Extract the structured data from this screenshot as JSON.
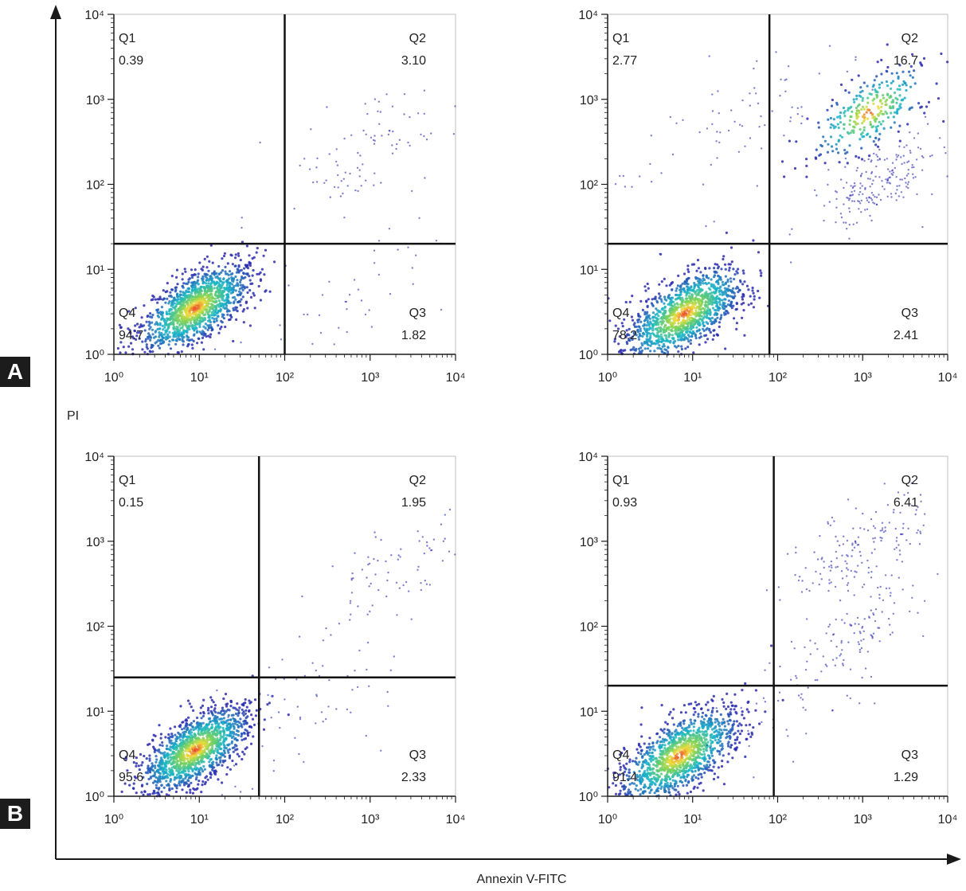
{
  "figure": {
    "y_label": "PI",
    "x_label": "Annexin V-FITC",
    "panel_labels": [
      "A",
      "B"
    ]
  },
  "colors": {
    "axis": "#1a1a1a",
    "density_low": "#2b2bb0",
    "density_mid": "#18b6c8",
    "density_high": "#e8352b"
  },
  "chart_data": [
    {
      "type": "scatter",
      "panel": "A",
      "position": "top-left",
      "title": "",
      "xlabel": "",
      "ylabel": "",
      "scale": "log",
      "xlim": [
        1,
        10000
      ],
      "ylim": [
        1,
        10000
      ],
      "x_ticks": [
        "10^0",
        "10^1",
        "10^2",
        "10^3",
        "10^4"
      ],
      "y_ticks": [
        "10^0",
        "10^1",
        "10^2",
        "10^3",
        "10^4"
      ],
      "gates": {
        "x": 100,
        "y": 20
      },
      "quadrants": {
        "Q1": "0.39",
        "Q2": "3.10",
        "Q3": "1.82",
        "Q4": "94.7"
      },
      "clusters": [
        {
          "x": 9,
          "y": 3.5,
          "spread": 0.28,
          "points": 1400,
          "dense": true
        },
        {
          "x": 1000,
          "y": 300,
          "spread": 0.45,
          "points": 90,
          "dense": false
        },
        {
          "x": 300,
          "y": 3,
          "spread": 0.5,
          "points": 45,
          "dense": false
        }
      ]
    },
    {
      "type": "scatter",
      "panel": "A",
      "position": "top-right",
      "title": "",
      "xlabel": "",
      "ylabel": "",
      "scale": "log",
      "xlim": [
        1,
        10000
      ],
      "ylim": [
        1,
        10000
      ],
      "x_ticks": [
        "10^0",
        "10^1",
        "10^2",
        "10^3",
        "10^4"
      ],
      "y_ticks": [
        "10^0",
        "10^1",
        "10^2",
        "10^3",
        "10^4"
      ],
      "gates": {
        "x": 80,
        "y": 20
      },
      "quadrants": {
        "Q1": "2.77",
        "Q2": "16.7",
        "Q3": "2.41",
        "Q4": "78.2"
      },
      "clusters": [
        {
          "x": 8,
          "y": 3,
          "spread": 0.3,
          "points": 1300,
          "dense": true
        },
        {
          "x": 1200,
          "y": 700,
          "spread": 0.3,
          "points": 320,
          "dense": true
        },
        {
          "x": 1500,
          "y": 100,
          "spread": 0.3,
          "points": 200,
          "dense": false
        },
        {
          "x": 30,
          "y": 500,
          "spread": 0.6,
          "points": 80,
          "dense": false
        }
      ]
    },
    {
      "type": "scatter",
      "panel": "B",
      "position": "bottom-left",
      "title": "",
      "xlabel": "",
      "ylabel": "",
      "scale": "log",
      "xlim": [
        1,
        10000
      ],
      "ylim": [
        1,
        10000
      ],
      "x_ticks": [
        "10^0",
        "10^1",
        "10^2",
        "10^3",
        "10^4"
      ],
      "y_ticks": [
        "10^0",
        "10^1",
        "10^2",
        "10^3",
        "10^4"
      ],
      "gates": {
        "x": 50,
        "y": 25
      },
      "quadrants": {
        "Q1": "0.15",
        "Q2": "1.95",
        "Q3": "2.33",
        "Q4": "95.6"
      },
      "clusters": [
        {
          "x": 9,
          "y": 3.5,
          "spread": 0.27,
          "points": 1400,
          "dense": true
        },
        {
          "x": 2000,
          "y": 400,
          "spread": 0.45,
          "points": 80,
          "dense": false
        },
        {
          "x": 150,
          "y": 10,
          "spread": 0.5,
          "points": 60,
          "dense": false
        }
      ]
    },
    {
      "type": "scatter",
      "panel": "B",
      "position": "bottom-right",
      "title": "",
      "xlabel": "",
      "ylabel": "",
      "scale": "log",
      "xlim": [
        1,
        10000
      ],
      "ylim": [
        1,
        10000
      ],
      "x_ticks": [
        "10^0",
        "10^1",
        "10^2",
        "10^3",
        "10^4"
      ],
      "y_ticks": [
        "10^0",
        "10^1",
        "10^2",
        "10^3",
        "10^4"
      ],
      "gates": {
        "x": 90,
        "y": 20
      },
      "quadrants": {
        "Q1": "0.93",
        "Q2": "6.41",
        "Q3": "1.29",
        "Q4": "91.4"
      },
      "clusters": [
        {
          "x": 7,
          "y": 3,
          "spread": 0.3,
          "points": 1300,
          "dense": true
        },
        {
          "x": 1000,
          "y": 900,
          "spread": 0.35,
          "points": 160,
          "dense": false
        },
        {
          "x": 1300,
          "y": 120,
          "spread": 0.3,
          "points": 80,
          "dense": false
        },
        {
          "x": 200,
          "y": 20,
          "spread": 0.5,
          "points": 70,
          "dense": false
        }
      ]
    }
  ]
}
